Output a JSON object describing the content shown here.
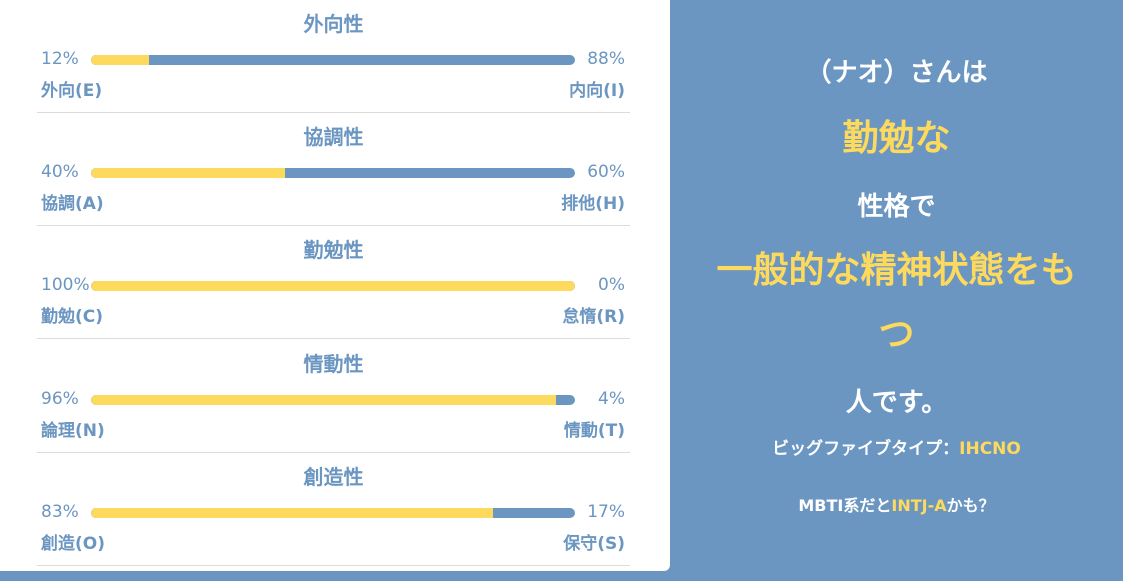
{
  "colors": {
    "background": "#6b96c1",
    "accent": "#fdd95e",
    "card": "#ffffff",
    "divider": "#dcdcdc"
  },
  "traits": [
    {
      "title": "外向性",
      "left_pct": "12%",
      "right_pct": "88%",
      "left_value": 12,
      "left_label": "外向(E)",
      "right_label": "内向(I)"
    },
    {
      "title": "協調性",
      "left_pct": "40%",
      "right_pct": "60%",
      "left_value": 40,
      "left_label": "協調(A)",
      "right_label": "排他(H)"
    },
    {
      "title": "勤勉性",
      "left_pct": "100%",
      "right_pct": "0%",
      "left_value": 100,
      "left_label": "勤勉(C)",
      "right_label": "怠惰(R)"
    },
    {
      "title": "情動性",
      "left_pct": "96%",
      "right_pct": "4%",
      "left_value": 96,
      "left_label": "論理(N)",
      "right_label": "情動(T)"
    },
    {
      "title": "創造性",
      "left_pct": "83%",
      "right_pct": "17%",
      "left_value": 83,
      "left_label": "創造(O)",
      "right_label": "保守(S)"
    }
  ],
  "summary": {
    "name_line": "（ナオ）さんは",
    "type_word": "勤勉な",
    "middle_line": "性格で",
    "state_line_1": "一般的な精神状態をも",
    "state_line_2": "つ",
    "end_line": "人です。",
    "big5_label": "ビッグファイブタイプ：",
    "big5_value": "IHCNO",
    "mbti_prefix": "MBTI系だと",
    "mbti_value": "INTJ-A",
    "mbti_suffix": "かも？"
  }
}
